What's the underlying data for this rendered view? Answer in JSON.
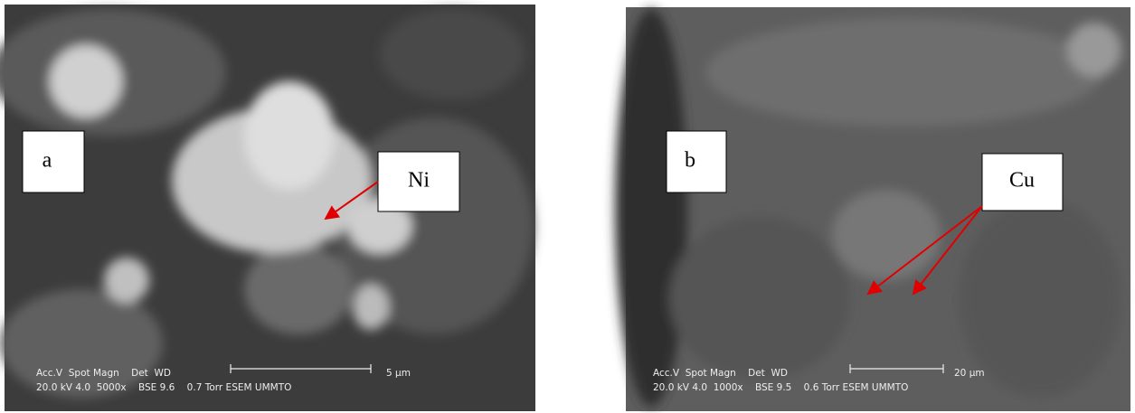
{
  "panels": [
    {
      "label": "a",
      "element": "Ni",
      "info_top": "Acc.V  Spot Magn    Det  WD",
      "info_bottom": "20.0 kV 4.0  5000x    BSE 9.6    0.7 Torr ESEM UMMTO",
      "scale": "5 µm"
    },
    {
      "label": "b",
      "element": "Cu",
      "info_top": "Acc.V  Spot Magn    Det  WD",
      "info_bottom": "20.0 kV 4.0  1000x    BSE 9.5    0.6 Torr ESEM UMMTO",
      "scale": "20 µm"
    }
  ]
}
